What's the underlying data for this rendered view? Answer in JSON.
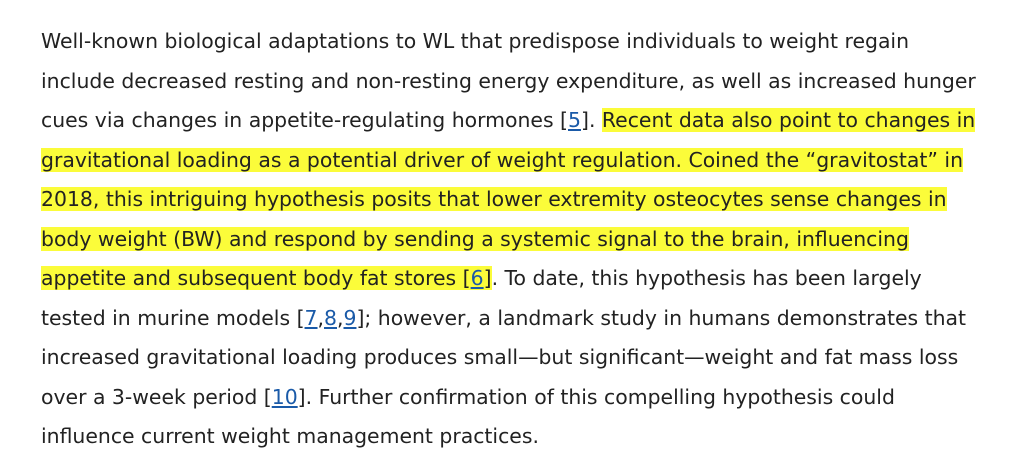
{
  "paragraph": {
    "s1": "Well-known biological adaptations to WL that predispose individuals to weight regain include decreased resting and non-resting energy expenditure, as well as increased hunger cues via changes in appetite-regulating hormones [",
    "ref_5": "5",
    "s1_end": "]. ",
    "highlight": "Recent data also point to changes in gravitational loading as a potential driver of weight regulation. Coined the “gravitostat” in 2018, this intriguing hypothesis posits that lower extremity osteocytes sense changes in body weight (BW) and respond by sending a systemic signal to the brain, influencing appetite and subsequent body fat stores [",
    "ref_6": "6",
    "highlight_end": "]",
    "s3": ". To date, this hypothesis has been largely tested in murine models [",
    "ref_7": "7",
    "comma_1": ",",
    "ref_8": "8",
    "comma_2": ",",
    "ref_9": "9",
    "s4": "]; however, a landmark study in humans demonstrates that increased gravitational loading produces small—but significant—weight and fat mass loss over a 3-week period [",
    "ref_10": "10",
    "s5": "]. Further confirmation of this compelling hypothesis could influence current weight management practices."
  },
  "colors": {
    "highlight": "#fbfc3a",
    "link": "#1a5aa8",
    "text": "#222222"
  }
}
